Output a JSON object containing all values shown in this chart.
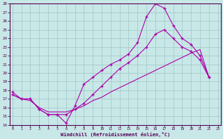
{
  "xlabel": "Windchill (Refroidissement éolien,°C)",
  "xlim": [
    0,
    23
  ],
  "ylim": [
    14,
    28
  ],
  "yticks": [
    14,
    15,
    16,
    17,
    18,
    19,
    20,
    21,
    22,
    23,
    24,
    25,
    26,
    27,
    28
  ],
  "xticks": [
    0,
    1,
    2,
    3,
    4,
    5,
    6,
    7,
    8,
    9,
    10,
    11,
    12,
    13,
    14,
    15,
    16,
    17,
    18,
    19,
    20,
    21,
    22,
    23
  ],
  "bg_color": "#c8e8e8",
  "grid_color": "#a0c4c4",
  "line_color": "#aa00aa",
  "line1_y": [
    17.5,
    17.0,
    17.0,
    15.8,
    15.2,
    15.2,
    14.2,
    16.2,
    18.7,
    19.5,
    20.3,
    21.0,
    21.5,
    22.2,
    23.5,
    26.5,
    28.0,
    27.5,
    25.5,
    24.0,
    23.3,
    22.0,
    19.5
  ],
  "line2_y": [
    17.5,
    17.0,
    16.8,
    16.0,
    15.5,
    15.5,
    15.5,
    15.8,
    16.2,
    16.8,
    17.2,
    17.8,
    18.3,
    18.8,
    19.3,
    19.8,
    20.3,
    20.8,
    21.3,
    21.8,
    22.3,
    22.7,
    19.5
  ],
  "line3_y": [
    17.8,
    17.0,
    17.0,
    15.8,
    15.2,
    15.2,
    15.2,
    15.8,
    16.5,
    17.5,
    18.5,
    19.5,
    20.5,
    21.2,
    22.0,
    23.0,
    24.5,
    25.0,
    24.0,
    23.0,
    22.5,
    21.5,
    19.5
  ]
}
